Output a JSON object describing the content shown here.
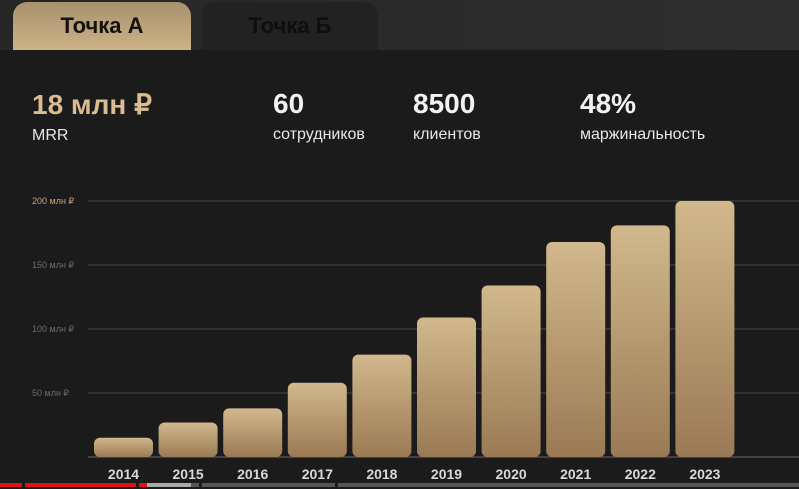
{
  "tabs": [
    {
      "label": "Точка А",
      "active": true
    },
    {
      "label": "Точка Б",
      "active": false
    }
  ],
  "stats": [
    {
      "value": "18 млн ₽",
      "label": "MRR"
    },
    {
      "value": "60",
      "label": "сотрудников"
    },
    {
      "value": "8500",
      "label": "клиентов"
    },
    {
      "value": "48%",
      "label": "маржинальность"
    }
  ],
  "colors": {
    "accent": "#d9bd90",
    "bar_top": "#d2b88c",
    "bar_bottom": "#9a7a55",
    "background": "#1c1b1b"
  },
  "chart_data": {
    "type": "bar",
    "categories": [
      "2014",
      "2015",
      "2016",
      "2017",
      "2018",
      "2019",
      "2020",
      "2021",
      "2022",
      "2023"
    ],
    "values": [
      15,
      27,
      38,
      58,
      80,
      109,
      134,
      168,
      181,
      200
    ],
    "unit": "млн ₽",
    "yticks": [
      {
        "value": 50,
        "label": "50 млн ₽"
      },
      {
        "value": 100,
        "label": "100 млн ₽"
      },
      {
        "value": 150,
        "label": "150 млн ₽"
      },
      {
        "value": 200,
        "label": "200 млн ₽"
      }
    ],
    "ylim": [
      0,
      200
    ],
    "grid": true
  }
}
